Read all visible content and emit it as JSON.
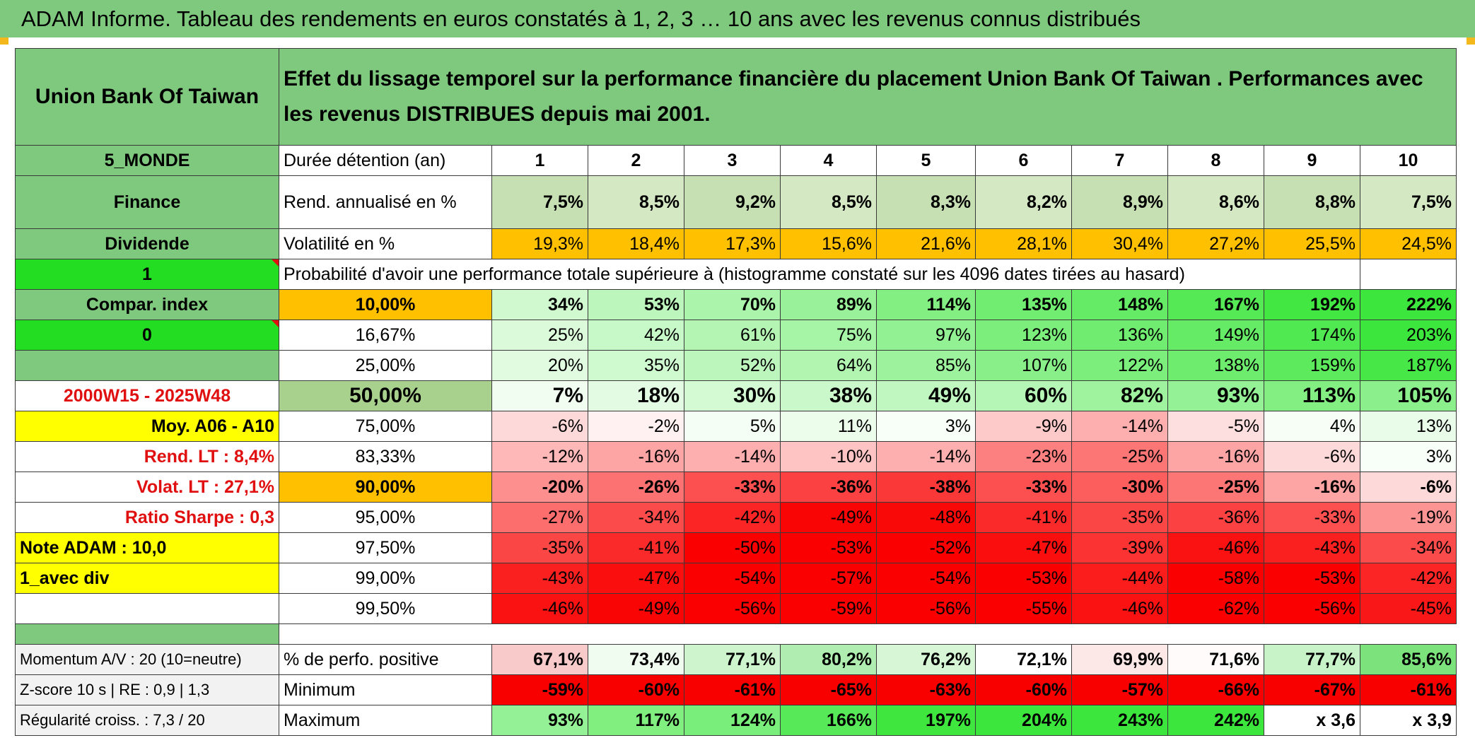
{
  "title": "ADAM Informe. Tableau des rendements en euros constatés à 1, 2, 3 … 10 ans avec les revenus connus distribués",
  "header": {
    "fund_name": "Union Bank Of Taiwan",
    "description": "Effet du lissage temporel sur la performance financière du placement Union Bank Of Taiwan . Performances avec les revenus DISTRIBUES depuis mai 2001."
  },
  "left": {
    "region": "5_MONDE",
    "sector": "Finance",
    "type": "Dividende",
    "sel1": "1",
    "compar_label": "Compar. index",
    "sel2": "0",
    "period": "2000W15 - 2025W48",
    "moy": "Moy. A06 - A10",
    "rend_lt": "Rend. LT :   8,4%",
    "volat_lt": "Volat. LT :   27,1%",
    "sharpe": "Ratio Sharpe :    0,3",
    "note": "Note ADAM : 10,0",
    "avec_div": "1_avec div",
    "momentum": "Momentum A/V : 20 (10=neutre)",
    "zscore": "Z-score 10 s | RE : 0,9 | 1,3",
    "regularite": "Régularité croiss. : 7,3 / 20"
  },
  "table": {
    "duration_label": "Durée détention (an)",
    "years": [
      "1",
      "2",
      "3",
      "4",
      "5",
      "6",
      "7",
      "8",
      "9",
      "10"
    ],
    "rend_label": "Rend. annualisé en %",
    "rend": [
      "7,5%",
      "8,5%",
      "9,2%",
      "8,5%",
      "8,3%",
      "8,2%",
      "8,9%",
      "8,6%",
      "8,8%",
      "7,5%"
    ],
    "vol_label": "Volatilité en %",
    "vol": [
      "19,3%",
      "18,4%",
      "17,3%",
      "15,6%",
      "21,6%",
      "28,1%",
      "30,4%",
      "27,2%",
      "25,5%",
      "24,5%"
    ],
    "prob_label": "Probabilité d'avoir une performance totale supérieure à (histogramme constaté sur les 4096 dates tirées au hasard)",
    "prob_rows": [
      {
        "p": "10,00%",
        "v": [
          "34%",
          "53%",
          "70%",
          "89%",
          "114%",
          "135%",
          "148%",
          "167%",
          "192%",
          "222%"
        ]
      },
      {
        "p": "16,67%",
        "v": [
          "25%",
          "42%",
          "61%",
          "75%",
          "97%",
          "123%",
          "136%",
          "149%",
          "174%",
          "203%"
        ]
      },
      {
        "p": "25,00%",
        "v": [
          "20%",
          "35%",
          "52%",
          "64%",
          "85%",
          "107%",
          "122%",
          "138%",
          "159%",
          "187%"
        ]
      },
      {
        "p": "50,00%",
        "v": [
          "7%",
          "18%",
          "30%",
          "38%",
          "49%",
          "60%",
          "82%",
          "93%",
          "113%",
          "105%"
        ]
      },
      {
        "p": "75,00%",
        "v": [
          "-6%",
          "-2%",
          "5%",
          "11%",
          "3%",
          "-9%",
          "-14%",
          "-5%",
          "4%",
          "13%"
        ]
      },
      {
        "p": "83,33%",
        "v": [
          "-12%",
          "-16%",
          "-14%",
          "-10%",
          "-14%",
          "-23%",
          "-25%",
          "-16%",
          "-6%",
          "3%"
        ]
      },
      {
        "p": "90,00%",
        "v": [
          "-20%",
          "-26%",
          "-33%",
          "-36%",
          "-38%",
          "-33%",
          "-30%",
          "-25%",
          "-16%",
          "-6%"
        ]
      },
      {
        "p": "95,00%",
        "v": [
          "-27%",
          "-34%",
          "-42%",
          "-49%",
          "-48%",
          "-41%",
          "-35%",
          "-36%",
          "-33%",
          "-19%"
        ]
      },
      {
        "p": "97,50%",
        "v": [
          "-35%",
          "-41%",
          "-50%",
          "-53%",
          "-52%",
          "-47%",
          "-39%",
          "-46%",
          "-43%",
          "-34%"
        ]
      },
      {
        "p": "99,00%",
        "v": [
          "-43%",
          "-47%",
          "-54%",
          "-57%",
          "-54%",
          "-53%",
          "-44%",
          "-58%",
          "-53%",
          "-42%"
        ]
      },
      {
        "p": "99,50%",
        "v": [
          "-46%",
          "-49%",
          "-56%",
          "-59%",
          "-56%",
          "-55%",
          "-46%",
          "-62%",
          "-56%",
          "-45%"
        ]
      }
    ],
    "pos_label": "% de perfo. positive",
    "pos": [
      "67,1%",
      "73,4%",
      "77,1%",
      "80,2%",
      "76,2%",
      "72,1%",
      "69,9%",
      "71,6%",
      "77,7%",
      "85,6%"
    ],
    "min_label": "Minimum",
    "min": [
      "-59%",
      "-60%",
      "-61%",
      "-65%",
      "-63%",
      "-60%",
      "-57%",
      "-66%",
      "-67%",
      "-61%"
    ],
    "max_label": "Maximum",
    "max": [
      "93%",
      "117%",
      "124%",
      "166%",
      "197%",
      "204%",
      "243%",
      "242%",
      "x 3,6",
      "x 3,9"
    ]
  },
  "colors": {
    "title_green": "#7fc97f",
    "label_green": "#7fc97f",
    "bright_green": "#22dd22",
    "orange": "#ffc000",
    "yellow": "#ffff00",
    "rend_green": "#c6e0b4",
    "red_text": "#e01010"
  }
}
